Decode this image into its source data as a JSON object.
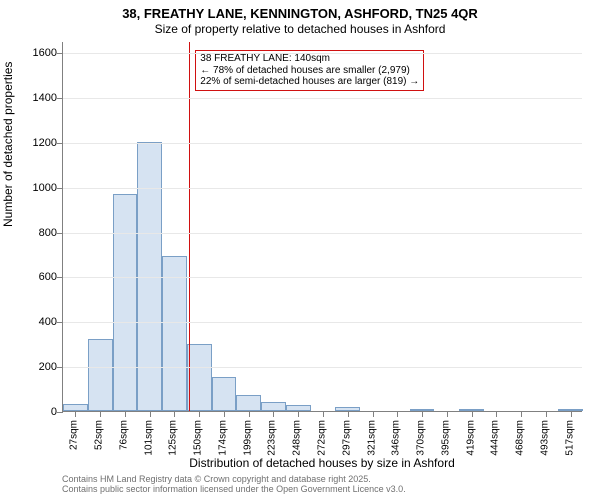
{
  "titles": {
    "line1": "38, FREATHY LANE, KENNINGTON, ASHFORD, TN25 4QR",
    "line2": "Size of property relative to detached houses in Ashford"
  },
  "chart": {
    "type": "histogram",
    "y": {
      "label": "Number of detached properties",
      "min": 0,
      "max": 1650,
      "ticks": [
        0,
        200,
        400,
        600,
        800,
        1000,
        1200,
        1400,
        1600
      ],
      "grid_color": "#e8e8e8",
      "axis_color": "#808080"
    },
    "x": {
      "label": "Distribution of detached houses by size in Ashford",
      "tick_labels": [
        "27sqm",
        "52sqm",
        "76sqm",
        "101sqm",
        "125sqm",
        "150sqm",
        "174sqm",
        "199sqm",
        "223sqm",
        "248sqm",
        "272sqm",
        "297sqm",
        "321sqm",
        "346sqm",
        "370sqm",
        "395sqm",
        "419sqm",
        "444sqm",
        "468sqm",
        "493sqm",
        "517sqm"
      ],
      "axis_color": "#808080"
    },
    "bars": {
      "values": [
        30,
        320,
        970,
        1200,
        690,
        300,
        150,
        70,
        40,
        25,
        0,
        20,
        0,
        0,
        10,
        0,
        10,
        0,
        0,
        0,
        10
      ],
      "fill_color": "#d6e3f2",
      "border_color": "#7a9fc6",
      "width_frac": 1.0
    },
    "reference": {
      "x_index": 4.6,
      "color": "#d01010",
      "annotation": {
        "line1": "38 FREATHY LANE: 140sqm",
        "line2": "← 78% of detached houses are smaller (2,979)",
        "line3": "22% of semi-detached houses are larger (819) →"
      }
    },
    "background_color": "#ffffff"
  },
  "footer": {
    "line1": "Contains HM Land Registry data © Crown copyright and database right 2025.",
    "line2": "Contains public sector information licensed under the Open Government Licence v3.0."
  }
}
